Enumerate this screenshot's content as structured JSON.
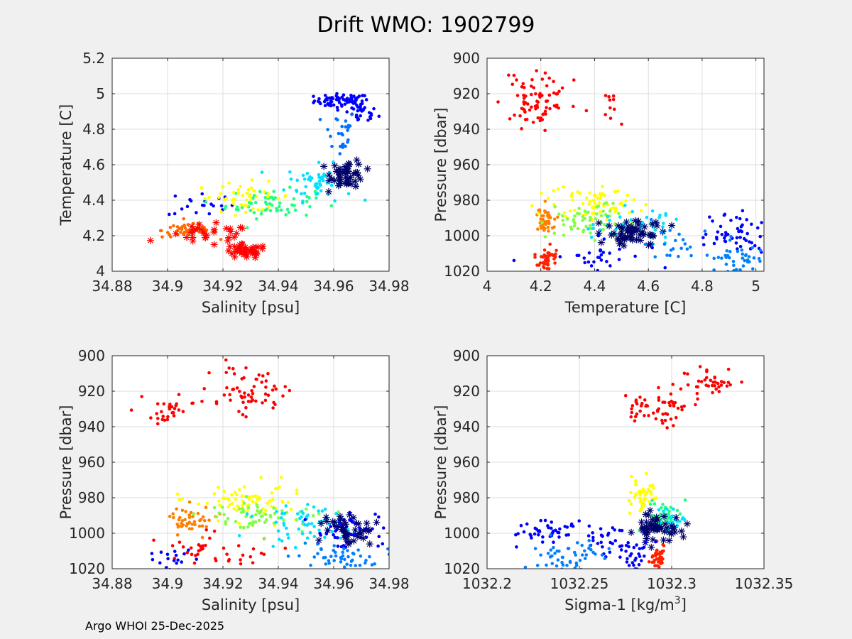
{
  "figure": {
    "title": "Drift WMO: 1902799",
    "footer": "Argo WHOI 25-Dec-2025"
  },
  "chart_data": [
    {
      "id": "ts",
      "type": "scatter",
      "xlabel": "Salinity [psu]",
      "ylabel": "Temperature [C]",
      "xlim": [
        34.88,
        34.98
      ],
      "ylim": [
        4,
        5.2
      ],
      "xticks": [
        "34.88",
        "34.9",
        "34.92",
        "34.94",
        "34.96",
        "34.98"
      ],
      "yticks": [
        "4",
        "4.2",
        "4.4",
        "4.6",
        "4.8",
        "5",
        "5.2"
      ],
      "y_reversed": false,
      "grid": true,
      "clusters": [
        {
          "color": "#0000ff",
          "cx": 34.963,
          "cy": 4.96,
          "sx": 0.005,
          "sy": 0.02,
          "n": 70
        },
        {
          "color": "#0000ff",
          "cx": 34.97,
          "cy": 4.89,
          "sx": 0.003,
          "sy": 0.03,
          "n": 30
        },
        {
          "color": "#0000ff",
          "cx": 34.912,
          "cy": 4.38,
          "sx": 0.006,
          "sy": 0.04,
          "n": 20
        },
        {
          "color": "#0070ff",
          "cx": 34.962,
          "cy": 4.78,
          "sx": 0.003,
          "sy": 0.07,
          "n": 25
        },
        {
          "color": "#00e0ff",
          "cx": 34.955,
          "cy": 4.5,
          "sx": 0.006,
          "sy": 0.05,
          "n": 60
        },
        {
          "color": "#20ff80",
          "cx": 34.937,
          "cy": 4.38,
          "sx": 0.008,
          "sy": 0.04,
          "n": 60
        },
        {
          "color": "#ffff00",
          "cx": 34.928,
          "cy": 4.42,
          "sx": 0.009,
          "sy": 0.04,
          "n": 45
        },
        {
          "color": "#ff6a00",
          "cx": 34.908,
          "cy": 4.23,
          "sx": 0.005,
          "sy": 0.02,
          "n": 60
        },
        {
          "color": "#ff0000",
          "cx": 34.928,
          "cy": 4.11,
          "sx": 0.004,
          "sy": 0.02,
          "n": 40,
          "marker": "star"
        },
        {
          "color": "#ff0000",
          "cx": 34.915,
          "cy": 4.2,
          "sx": 0.008,
          "sy": 0.03,
          "n": 30,
          "marker": "star"
        },
        {
          "color": "#00006a",
          "cx": 34.965,
          "cy": 4.55,
          "sx": 0.003,
          "sy": 0.04,
          "n": 50,
          "marker": "star"
        }
      ]
    },
    {
      "id": "tp",
      "type": "scatter",
      "xlabel": "Temperature [C]",
      "ylabel": "Pressure [dbar]",
      "xlim": [
        4,
        5.03
      ],
      "ylim": [
        900,
        1020
      ],
      "xticks": [
        "4",
        "4.2",
        "4.4",
        "4.6",
        "4.8",
        "5"
      ],
      "yticks": [
        "900",
        "920",
        "940",
        "960",
        "980",
        "1000",
        "1020"
      ],
      "y_reversed": true,
      "grid": true,
      "clusters": [
        {
          "color": "#ff0000",
          "cx": 4.18,
          "cy": 924,
          "sx": 0.06,
          "sy": 7,
          "n": 80
        },
        {
          "color": "#ff0000",
          "cx": 4.46,
          "cy": 927,
          "sx": 0.02,
          "sy": 5,
          "n": 10
        },
        {
          "color": "#ff2000",
          "cx": 4.22,
          "cy": 1012,
          "sx": 0.02,
          "sy": 4,
          "n": 45
        },
        {
          "color": "#ff8000",
          "cx": 4.22,
          "cy": 992,
          "sx": 0.02,
          "sy": 4,
          "n": 45
        },
        {
          "color": "#ffff00",
          "cx": 4.4,
          "cy": 982,
          "sx": 0.08,
          "sy": 5,
          "n": 70
        },
        {
          "color": "#80ff40",
          "cx": 4.35,
          "cy": 991,
          "sx": 0.08,
          "sy": 5,
          "n": 60
        },
        {
          "color": "#00e0ff",
          "cx": 4.55,
          "cy": 994,
          "sx": 0.08,
          "sy": 5,
          "n": 60
        },
        {
          "color": "#00006a",
          "cx": 4.55,
          "cy": 998,
          "sx": 0.06,
          "sy": 4,
          "n": 60,
          "marker": "star"
        },
        {
          "color": "#0000ff",
          "cx": 4.92,
          "cy": 999,
          "sx": 0.06,
          "sy": 5,
          "n": 50
        },
        {
          "color": "#0000ff",
          "cx": 4.4,
          "cy": 1012,
          "sx": 0.1,
          "sy": 5,
          "n": 30
        },
        {
          "color": "#0080ff",
          "cx": 4.93,
          "cy": 1013,
          "sx": 0.05,
          "sy": 4,
          "n": 40
        },
        {
          "color": "#0080ff",
          "cx": 4.72,
          "cy": 1005,
          "sx": 0.08,
          "sy": 5,
          "n": 20
        }
      ]
    },
    {
      "id": "sp",
      "type": "scatter",
      "xlabel": "Salinity [psu]",
      "ylabel": "Pressure [dbar]",
      "xlim": [
        34.88,
        34.98
      ],
      "ylim": [
        900,
        1020
      ],
      "xticks": [
        "34.88",
        "34.9",
        "34.92",
        "34.94",
        "34.96",
        "34.98"
      ],
      "yticks": [
        "900",
        "920",
        "940",
        "960",
        "980",
        "1000",
        "1020"
      ],
      "y_reversed": true,
      "grid": true,
      "clusters": [
        {
          "color": "#ff0000",
          "cx": 34.902,
          "cy": 930,
          "sx": 0.004,
          "sy": 4,
          "n": 30
        },
        {
          "color": "#ff0000",
          "cx": 34.93,
          "cy": 920,
          "sx": 0.007,
          "sy": 6,
          "n": 60
        },
        {
          "color": "#ff0000",
          "cx": 34.915,
          "cy": 1010,
          "sx": 0.01,
          "sy": 5,
          "n": 40
        },
        {
          "color": "#ff8000",
          "cx": 34.908,
          "cy": 992,
          "sx": 0.004,
          "sy": 4,
          "n": 45
        },
        {
          "color": "#ffff00",
          "cx": 34.93,
          "cy": 981,
          "sx": 0.01,
          "sy": 5,
          "n": 70
        },
        {
          "color": "#80ff40",
          "cx": 34.932,
          "cy": 990,
          "sx": 0.01,
          "sy": 5,
          "n": 60
        },
        {
          "color": "#00e0ff",
          "cx": 34.95,
          "cy": 995,
          "sx": 0.008,
          "sy": 5,
          "n": 60
        },
        {
          "color": "#0000ff",
          "cx": 34.965,
          "cy": 1000,
          "sx": 0.006,
          "sy": 5,
          "n": 60
        },
        {
          "color": "#0080ff",
          "cx": 34.96,
          "cy": 1013,
          "sx": 0.007,
          "sy": 4,
          "n": 50
        },
        {
          "color": "#00006a",
          "cx": 34.965,
          "cy": 996,
          "sx": 0.004,
          "sy": 5,
          "n": 40,
          "marker": "star"
        },
        {
          "color": "#0000ff",
          "cx": 34.9,
          "cy": 1015,
          "sx": 0.005,
          "sy": 4,
          "n": 20
        }
      ]
    },
    {
      "id": "sigp",
      "type": "scatter",
      "xlabel": "Sigma-1 [kg/m",
      "xlabel_sup": "3",
      "xlabel_end": "]",
      "ylabel": "Pressure [dbar]",
      "xlim": [
        1032.2,
        1032.35
      ],
      "ylim": [
        900,
        1020
      ],
      "xticks": [
        "1032.2",
        "1032.25",
        "1032.3",
        "1032.35"
      ],
      "yticks": [
        "900",
        "920",
        "940",
        "960",
        "980",
        "1000",
        "1020"
      ],
      "y_reversed": true,
      "grid": true,
      "clusters": [
        {
          "color": "#ff0000",
          "cx": 1032.32,
          "cy": 917,
          "sx": 0.008,
          "sy": 5,
          "n": 40
        },
        {
          "color": "#ff0000",
          "cx": 1032.295,
          "cy": 930,
          "sx": 0.006,
          "sy": 5,
          "n": 40
        },
        {
          "color": "#ff0000",
          "cx": 1032.28,
          "cy": 930,
          "sx": 0.002,
          "sy": 5,
          "n": 12
        },
        {
          "color": "#ff2000",
          "cx": 1032.293,
          "cy": 1014,
          "sx": 0.002,
          "sy": 4,
          "n": 40
        },
        {
          "color": "#ffff00",
          "cx": 1032.285,
          "cy": 979,
          "sx": 0.004,
          "sy": 5,
          "n": 45
        },
        {
          "color": "#20ff80",
          "cx": 1032.296,
          "cy": 990,
          "sx": 0.004,
          "sy": 4,
          "n": 40
        },
        {
          "color": "#00e0ff",
          "cx": 1032.3,
          "cy": 993,
          "sx": 0.004,
          "sy": 4,
          "n": 30
        },
        {
          "color": "#00006a",
          "cx": 1032.292,
          "cy": 998,
          "sx": 0.006,
          "sy": 4,
          "n": 55,
          "marker": "star"
        },
        {
          "color": "#0000ff",
          "cx": 1032.23,
          "cy": 999,
          "sx": 0.01,
          "sy": 4,
          "n": 40
        },
        {
          "color": "#0000ff",
          "cx": 1032.265,
          "cy": 1005,
          "sx": 0.01,
          "sy": 5,
          "n": 40
        },
        {
          "color": "#0080ff",
          "cx": 1032.245,
          "cy": 1013,
          "sx": 0.01,
          "sy": 4,
          "n": 50
        },
        {
          "color": "#0000ff",
          "cx": 1032.28,
          "cy": 1014,
          "sx": 0.004,
          "sy": 4,
          "n": 20
        }
      ]
    }
  ]
}
